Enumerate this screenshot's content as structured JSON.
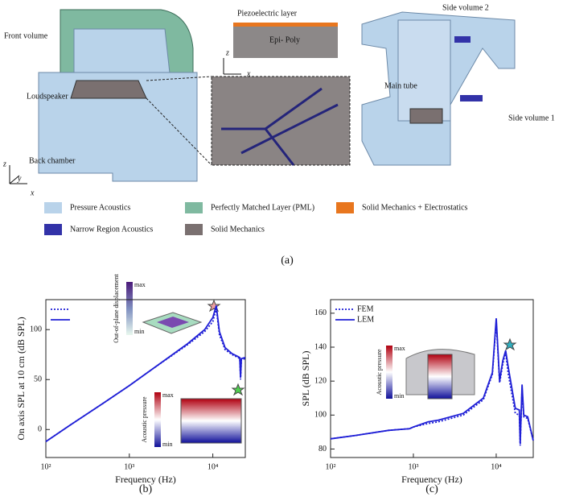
{
  "figure_a": {
    "labels": [
      "Front volume",
      "Loudspeaker",
      "Back chamber",
      "Piezoelectric layer",
      "Epi- Poly",
      "Side volume 2",
      "Main tube",
      "Side volume 1"
    ],
    "axes_main": [
      "z",
      "y",
      "x"
    ],
    "axes_inset": [
      "z",
      "x"
    ],
    "legend": [
      {
        "label": "Pressure Acoustics",
        "color": "#b9d3ea"
      },
      {
        "label": "Perfectly Matched Layer (PML)",
        "color": "#7fb9a0"
      },
      {
        "label": "Solid Mechanics + Electrostatics",
        "color": "#e8761e"
      },
      {
        "label": "Narrow Region Acoustics",
        "color": "#3232a8"
      },
      {
        "label": "Solid Mechanics",
        "color": "#7a7070"
      }
    ],
    "panel_label": "(a)"
  },
  "chart_data": [
    {
      "type": "line",
      "log_x": true,
      "panel_label": "(b)",
      "x_label": "Frequency (Hz)",
      "y_label": "On axis SPL at 10 cm (dB SPL)",
      "xlim": [
        100,
        24500
      ],
      "ylim": [
        -28,
        130
      ],
      "xticks": [
        {
          "value": 100,
          "label": "10²"
        },
        {
          "value": 1000,
          "label": "10³"
        },
        {
          "value": 10000,
          "label": "10⁴"
        }
      ],
      "yticks": [
        0,
        50,
        100
      ],
      "legend": "upper left",
      "annotations": [
        "max",
        "min",
        "Out-of-plane displacement",
        "max",
        "min",
        "Acoustic pressure"
      ],
      "x": [
        100,
        200,
        500,
        1000,
        2000,
        5000,
        8000,
        10000,
        11000,
        12000,
        14000,
        17000,
        20000,
        21000,
        21500,
        22000,
        24500
      ],
      "series": [
        {
          "color": "#1f1fd6",
          "dash": true,
          "values": [
            -12,
            5,
            27,
            44,
            62,
            85,
            98,
            108,
            121,
            95,
            80,
            75,
            72,
            71,
            50,
            70,
            71
          ]
        },
        {
          "color": "#1f1fd6",
          "dash": false,
          "values": [
            -12,
            5,
            27,
            44,
            62,
            86,
            100,
            112,
            124,
            98,
            82,
            76,
            73,
            72,
            52,
            71,
            72
          ]
        }
      ]
    },
    {
      "type": "line",
      "log_x": true,
      "panel_label": "(c)",
      "x_label": "Frequency (Hz)",
      "y_label": "SPL (dB SPL)",
      "xlim": [
        100,
        28000
      ],
      "ylim": [
        75,
        168
      ],
      "xticks": [
        {
          "value": 100,
          "label": "10²"
        },
        {
          "value": 1000,
          "label": "10³"
        },
        {
          "value": 10000,
          "label": "10⁴"
        }
      ],
      "yticks": [
        80,
        100,
        120,
        140,
        160
      ],
      "legend": "upper left",
      "annotations": [
        "max",
        "min",
        "Acoustic pressure"
      ],
      "x": [
        100,
        200,
        500,
        900,
        1000,
        1500,
        2000,
        4000,
        7000,
        9000,
        10000,
        11000,
        12000,
        13000,
        14000,
        17000,
        19000,
        19500,
        20500,
        21500,
        24000,
        28000
      ],
      "series": [
        {
          "name": "FEM",
          "color": "#1f1fd6",
          "dash": true,
          "values": [
            86,
            88,
            91,
            92,
            93,
            95,
            96,
            100,
            109,
            124,
            155,
            119,
            130,
            137,
            124,
            101,
            100,
            82,
            116,
            99,
            98,
            85
          ]
        },
        {
          "name": "LEM",
          "color": "#1f1fd6",
          "dash": false,
          "values": [
            86,
            88,
            91,
            92,
            93,
            96,
            97,
            101,
            110,
            125,
            157,
            120,
            132,
            138,
            128,
            104,
            103,
            83,
            118,
            100,
            99,
            85
          ]
        }
      ]
    }
  ]
}
